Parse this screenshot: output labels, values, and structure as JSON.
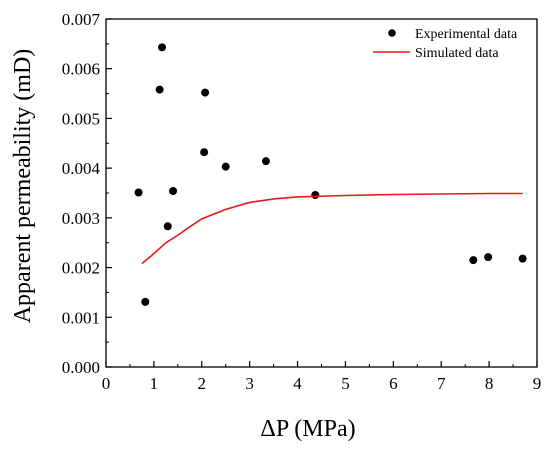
{
  "chart_data": {
    "type": "scatter",
    "xlabel": "ΔP (MPa)",
    "ylabel": "Apparent permeability (mD)",
    "xlim": [
      0,
      9
    ],
    "ylim": [
      0,
      0.007
    ],
    "x_ticks": [
      0,
      1,
      2,
      3,
      4,
      5,
      6,
      7,
      8,
      9
    ],
    "y_ticks": [
      0.0,
      0.001,
      0.002,
      0.003,
      0.004,
      0.005,
      0.006,
      0.007
    ],
    "x_tick_labels": [
      "0",
      "1",
      "2",
      "3",
      "4",
      "5",
      "6",
      "7",
      "8",
      "9"
    ],
    "y_tick_labels": [
      "0.000",
      "0.001",
      "0.002",
      "0.003",
      "0.004",
      "0.005",
      "0.006",
      "0.007"
    ],
    "legend_position": "top-right",
    "series": [
      {
        "name": "Experimental data",
        "kind": "scatter",
        "color": "#000000",
        "points": [
          [
            0.68,
            0.00351
          ],
          [
            0.82,
            0.00131
          ],
          [
            1.12,
            0.00558
          ],
          [
            1.17,
            0.00643
          ],
          [
            1.29,
            0.00283
          ],
          [
            1.4,
            0.00354
          ],
          [
            2.05,
            0.00432
          ],
          [
            2.07,
            0.00552
          ],
          [
            2.5,
            0.00403
          ],
          [
            3.34,
            0.00414
          ],
          [
            4.37,
            0.00346
          ],
          [
            7.67,
            0.00215
          ],
          [
            7.98,
            0.00221
          ],
          [
            8.7,
            0.00218
          ]
        ]
      },
      {
        "name": "Simulated data",
        "kind": "line",
        "color": "#e41a1c",
        "points": [
          [
            0.75,
            0.00208
          ],
          [
            1.0,
            0.00228
          ],
          [
            1.25,
            0.0025
          ],
          [
            1.5,
            0.00265
          ],
          [
            1.75,
            0.00282
          ],
          [
            2.0,
            0.00298
          ],
          [
            2.5,
            0.00317
          ],
          [
            3.0,
            0.00331
          ],
          [
            3.5,
            0.00338
          ],
          [
            4.0,
            0.00342
          ],
          [
            5.0,
            0.00345
          ],
          [
            6.0,
            0.00347
          ],
          [
            7.0,
            0.00348
          ],
          [
            8.0,
            0.00349
          ],
          [
            8.7,
            0.00349
          ]
        ]
      }
    ]
  }
}
